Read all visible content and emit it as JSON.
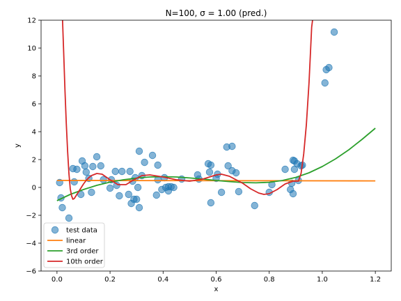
{
  "chart_data": {
    "type": "scatter",
    "title": "N=100, σ = 1.00 (pred.)",
    "xlabel": "x",
    "ylabel": "y",
    "xlim": [
      -0.06,
      1.26
    ],
    "ylim": [
      -6,
      12
    ],
    "xticks": [
      "0.0",
      "0.2",
      "0.4",
      "0.6",
      "0.8",
      "1.0",
      "1.2"
    ],
    "xtick_values": [
      0.0,
      0.2,
      0.4,
      0.6,
      0.8,
      1.0,
      1.2
    ],
    "yticks": [
      "−6",
      "−4",
      "−2",
      "0",
      "2",
      "4",
      "6",
      "8",
      "10",
      "12"
    ],
    "ytick_values": [
      -6,
      -4,
      -2,
      0,
      2,
      4,
      6,
      8,
      10,
      12
    ],
    "grid": false,
    "legend_position": "lower-left",
    "scatter": {
      "name": "test data",
      "color": "#1f77b4",
      "points": [
        [
          0.01,
          0.35
        ],
        [
          0.015,
          -0.75
        ],
        [
          0.02,
          -1.45
        ],
        [
          0.045,
          -2.2
        ],
        [
          0.06,
          1.35
        ],
        [
          0.065,
          0.4
        ],
        [
          0.075,
          1.3
        ],
        [
          0.09,
          -0.5
        ],
        [
          0.095,
          1.9
        ],
        [
          0.105,
          1.55
        ],
        [
          0.11,
          1.1
        ],
        [
          0.12,
          0.65
        ],
        [
          0.13,
          -0.35
        ],
        [
          0.135,
          1.5
        ],
        [
          0.15,
          2.2
        ],
        [
          0.165,
          1.55
        ],
        [
          0.175,
          0.55
        ],
        [
          0.2,
          -0.05
        ],
        [
          0.205,
          0.55
        ],
        [
          0.22,
          1.15
        ],
        [
          0.225,
          0.15
        ],
        [
          0.235,
          -0.6
        ],
        [
          0.245,
          1.15
        ],
        [
          0.27,
          -0.5
        ],
        [
          0.275,
          1.15
        ],
        [
          0.28,
          -1.15
        ],
        [
          0.285,
          0.45
        ],
        [
          0.29,
          -0.85
        ],
        [
          0.295,
          0.7
        ],
        [
          0.3,
          -0.85
        ],
        [
          0.305,
          0.0
        ],
        [
          0.31,
          2.6
        ],
        [
          0.31,
          -1.45
        ],
        [
          0.32,
          0.85
        ],
        [
          0.33,
          1.8
        ],
        [
          0.36,
          2.3
        ],
        [
          0.375,
          -0.55
        ],
        [
          0.38,
          0.55
        ],
        [
          0.38,
          1.6
        ],
        [
          0.395,
          -0.15
        ],
        [
          0.405,
          0.7
        ],
        [
          0.41,
          0.0
        ],
        [
          0.42,
          0.05
        ],
        [
          0.42,
          -0.25
        ],
        [
          0.43,
          0.05
        ],
        [
          0.44,
          0.0
        ],
        [
          0.47,
          0.6
        ],
        [
          0.53,
          0.9
        ],
        [
          0.535,
          0.6
        ],
        [
          0.57,
          1.7
        ],
        [
          0.575,
          1.1
        ],
        [
          0.58,
          1.6
        ],
        [
          0.58,
          -1.1
        ],
        [
          0.6,
          0.65
        ],
        [
          0.605,
          0.95
        ],
        [
          0.62,
          -0.35
        ],
        [
          0.64,
          2.9
        ],
        [
          0.645,
          1.55
        ],
        [
          0.66,
          2.95
        ],
        [
          0.66,
          1.2
        ],
        [
          0.675,
          1.05
        ],
        [
          0.685,
          -0.3
        ],
        [
          0.745,
          -1.3
        ],
        [
          0.8,
          -0.35
        ],
        [
          0.81,
          0.2
        ],
        [
          0.86,
          1.3
        ],
        [
          0.88,
          -0.15
        ],
        [
          0.885,
          0.3
        ],
        [
          0.89,
          -0.45
        ],
        [
          0.89,
          1.95
        ],
        [
          0.895,
          1.3
        ],
        [
          0.895,
          1.9
        ],
        [
          0.905,
          1.7
        ],
        [
          0.91,
          0.5
        ],
        [
          0.92,
          1.55
        ],
        [
          0.925,
          1.6
        ],
        [
          1.01,
          7.5
        ],
        [
          1.015,
          8.45
        ],
        [
          1.025,
          8.6
        ],
        [
          1.045,
          11.15
        ]
      ]
    },
    "series": [
      {
        "name": "linear",
        "color": "#ff7f0e",
        "type": "line",
        "x": [
          0.0,
          1.2
        ],
        "y": [
          0.5,
          0.47
        ]
      },
      {
        "name": "3rd order",
        "color": "#2ca02c",
        "type": "line",
        "x": [
          0.0,
          0.05,
          0.1,
          0.15,
          0.2,
          0.25,
          0.3,
          0.35,
          0.4,
          0.45,
          0.5,
          0.55,
          0.6,
          0.65,
          0.7,
          0.75,
          0.8,
          0.85,
          0.9,
          0.95,
          1.0,
          1.05,
          1.1,
          1.15,
          1.2
        ],
        "y": [
          -0.95,
          -0.5,
          -0.15,
          0.15,
          0.38,
          0.55,
          0.67,
          0.75,
          0.77,
          0.75,
          0.68,
          0.6,
          0.5,
          0.42,
          0.35,
          0.33,
          0.37,
          0.5,
          0.72,
          1.05,
          1.5,
          2.05,
          2.7,
          3.45,
          4.25
        ]
      },
      {
        "name": "10th order",
        "color": "#d62728",
        "type": "line",
        "x": [
          0.02,
          0.025,
          0.03,
          0.035,
          0.04,
          0.045,
          0.05,
          0.055,
          0.06,
          0.065,
          0.07,
          0.08,
          0.09,
          0.1,
          0.11,
          0.12,
          0.13,
          0.15,
          0.17,
          0.2,
          0.23,
          0.26,
          0.29,
          0.32,
          0.35,
          0.4,
          0.45,
          0.5,
          0.55,
          0.6,
          0.62,
          0.65,
          0.7,
          0.73,
          0.76,
          0.78,
          0.8,
          0.83,
          0.86,
          0.89,
          0.91,
          0.92,
          0.93,
          0.94,
          0.95,
          0.955,
          0.96,
          0.97
        ],
        "y": [
          12.5,
          9.8,
          7.0,
          4.6,
          2.6,
          1.0,
          -0.1,
          -0.6,
          -0.85,
          -0.8,
          -0.65,
          -0.35,
          -0.05,
          0.25,
          0.5,
          0.7,
          0.85,
          1.0,
          0.95,
          0.55,
          0.2,
          0.2,
          0.55,
          0.85,
          0.9,
          0.75,
          0.55,
          0.45,
          0.6,
          0.9,
          0.95,
          0.8,
          0.3,
          -0.1,
          -0.4,
          -0.5,
          -0.45,
          -0.15,
          0.25,
          0.45,
          0.45,
          1.0,
          2.4,
          4.5,
          7.5,
          9.5,
          11.5,
          13.0
        ]
      }
    ]
  }
}
